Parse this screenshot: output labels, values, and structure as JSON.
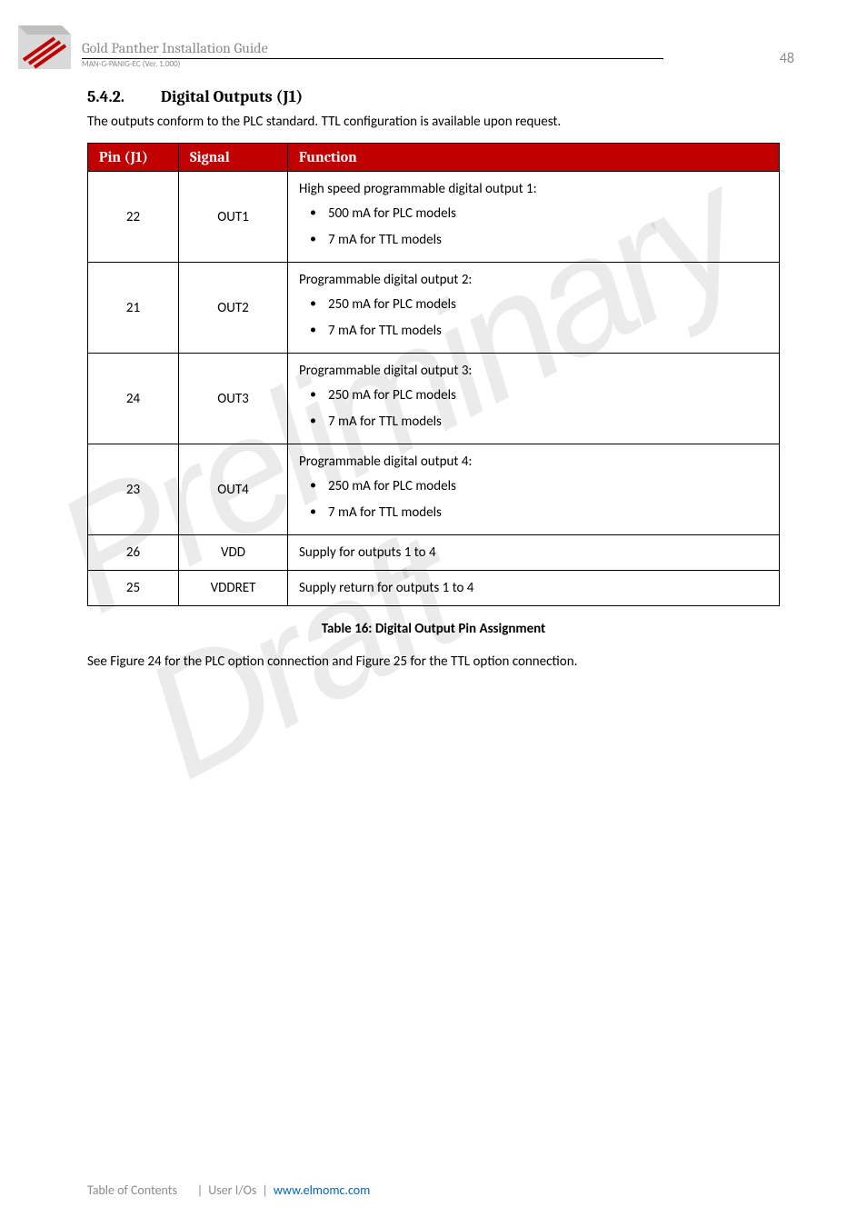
{
  "header": {
    "title": "Gold Panther Installation Guide",
    "subtitle": "MAN-G-PANIG-EC (Ver. 1.000)",
    "page_number": "48"
  },
  "watermark_text": "Preliminary Draft",
  "section": {
    "number": "5.4.2.",
    "title": "Digital Outputs (J1)",
    "intro": "The outputs conform to the PLC standard. TTL configuration is available upon request."
  },
  "table": {
    "headers": {
      "pin": "Pin (J1)",
      "signal": "Signal",
      "function": "Function"
    },
    "rows": [
      {
        "pin": "22",
        "signal": "OUT1",
        "func_heading": "High speed programmable digital output 1:",
        "bullets": [
          "500 mA for PLC models",
          "7 mA for TTL models"
        ]
      },
      {
        "pin": "21",
        "signal": "OUT2",
        "func_heading": "Programmable digital output 2:",
        "bullets": [
          "250 mA for PLC models",
          "7 mA for TTL models"
        ]
      },
      {
        "pin": "24",
        "signal": "OUT3",
        "func_heading": "Programmable digital output 3:",
        "bullets": [
          "250 mA for PLC models",
          "7 mA for TTL models"
        ]
      },
      {
        "pin": "23",
        "signal": "OUT4",
        "func_heading": "Programmable digital output 4:",
        "bullets": [
          "250 mA for PLC models",
          "7 mA for TTL models"
        ]
      },
      {
        "pin": "26",
        "signal": "VDD",
        "func_text": "Supply for outputs 1 to 4"
      },
      {
        "pin": "25",
        "signal": "VDDRET",
        "func_text": "Supply return for outputs 1 to 4"
      }
    ],
    "caption": "Table 16: Digital Output Pin Assignment"
  },
  "post_table_text": "See Figure 24 for the PLC option connection and Figure 25 for the TTL option connection.",
  "footer": {
    "toc": "Table of Contents",
    "section_ref": "User I/Os",
    "url": "www.elmomc.com"
  },
  "colors": {
    "header_red": "#c00000",
    "link_blue": "#0563c1",
    "grey_text": "#8b8b8b"
  }
}
